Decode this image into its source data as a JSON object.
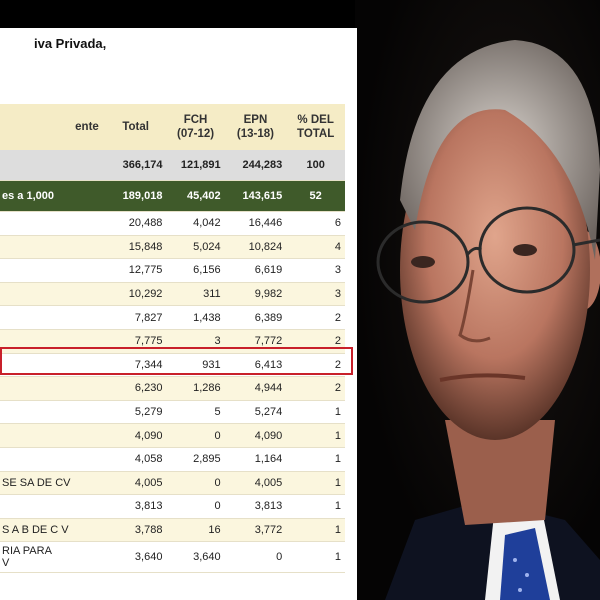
{
  "doc": {
    "title": "iva Privada,",
    "headers": [
      "ente",
      "Total",
      "FCH\n(07-12)",
      "EPN\n(13-18)",
      "% DEL\nTOTAL"
    ],
    "total_row": [
      "",
      "366,174",
      "121,891",
      "244,283",
      "100"
    ],
    "group_row": [
      "es a 1,000",
      "189,018",
      "45,402",
      "143,615",
      "52"
    ],
    "rows": [
      [
        "",
        "20,488",
        "4,042",
        "16,446",
        "6"
      ],
      [
        "",
        "15,848",
        "5,024",
        "10,824",
        "4"
      ],
      [
        "",
        "12,775",
        "6,156",
        "6,619",
        "3"
      ],
      [
        "",
        "10,292",
        "311",
        "9,982",
        "3"
      ],
      [
        "",
        "7,827",
        "1,438",
        "6,389",
        "2"
      ],
      [
        "",
        "7,775",
        "3",
        "7,772",
        "2"
      ],
      [
        "",
        "7,344",
        "931",
        "6,413",
        "2"
      ],
      [
        "",
        "6,230",
        "1,286",
        "4,944",
        "2"
      ],
      [
        "",
        "5,279",
        "5",
        "5,274",
        "1"
      ],
      [
        "",
        "4,090",
        "0",
        "4,090",
        "1"
      ],
      [
        "",
        "4,058",
        "2,895",
        "1,164",
        "1"
      ],
      [
        "SE SA DE CV",
        "4,005",
        "0",
        "4,005",
        "1"
      ],
      [
        "",
        "3,813",
        "0",
        "3,813",
        "1"
      ],
      [
        "S A B DE C V",
        "3,788",
        "16",
        "3,772",
        "1"
      ],
      [
        "RIA PARA\nV",
        "3,640",
        "3,640",
        "0",
        "1"
      ]
    ]
  },
  "colors": {
    "header_bg": "#f5ecc6",
    "group_bg": "#3f5a2a",
    "highlight": "#c8202a"
  }
}
